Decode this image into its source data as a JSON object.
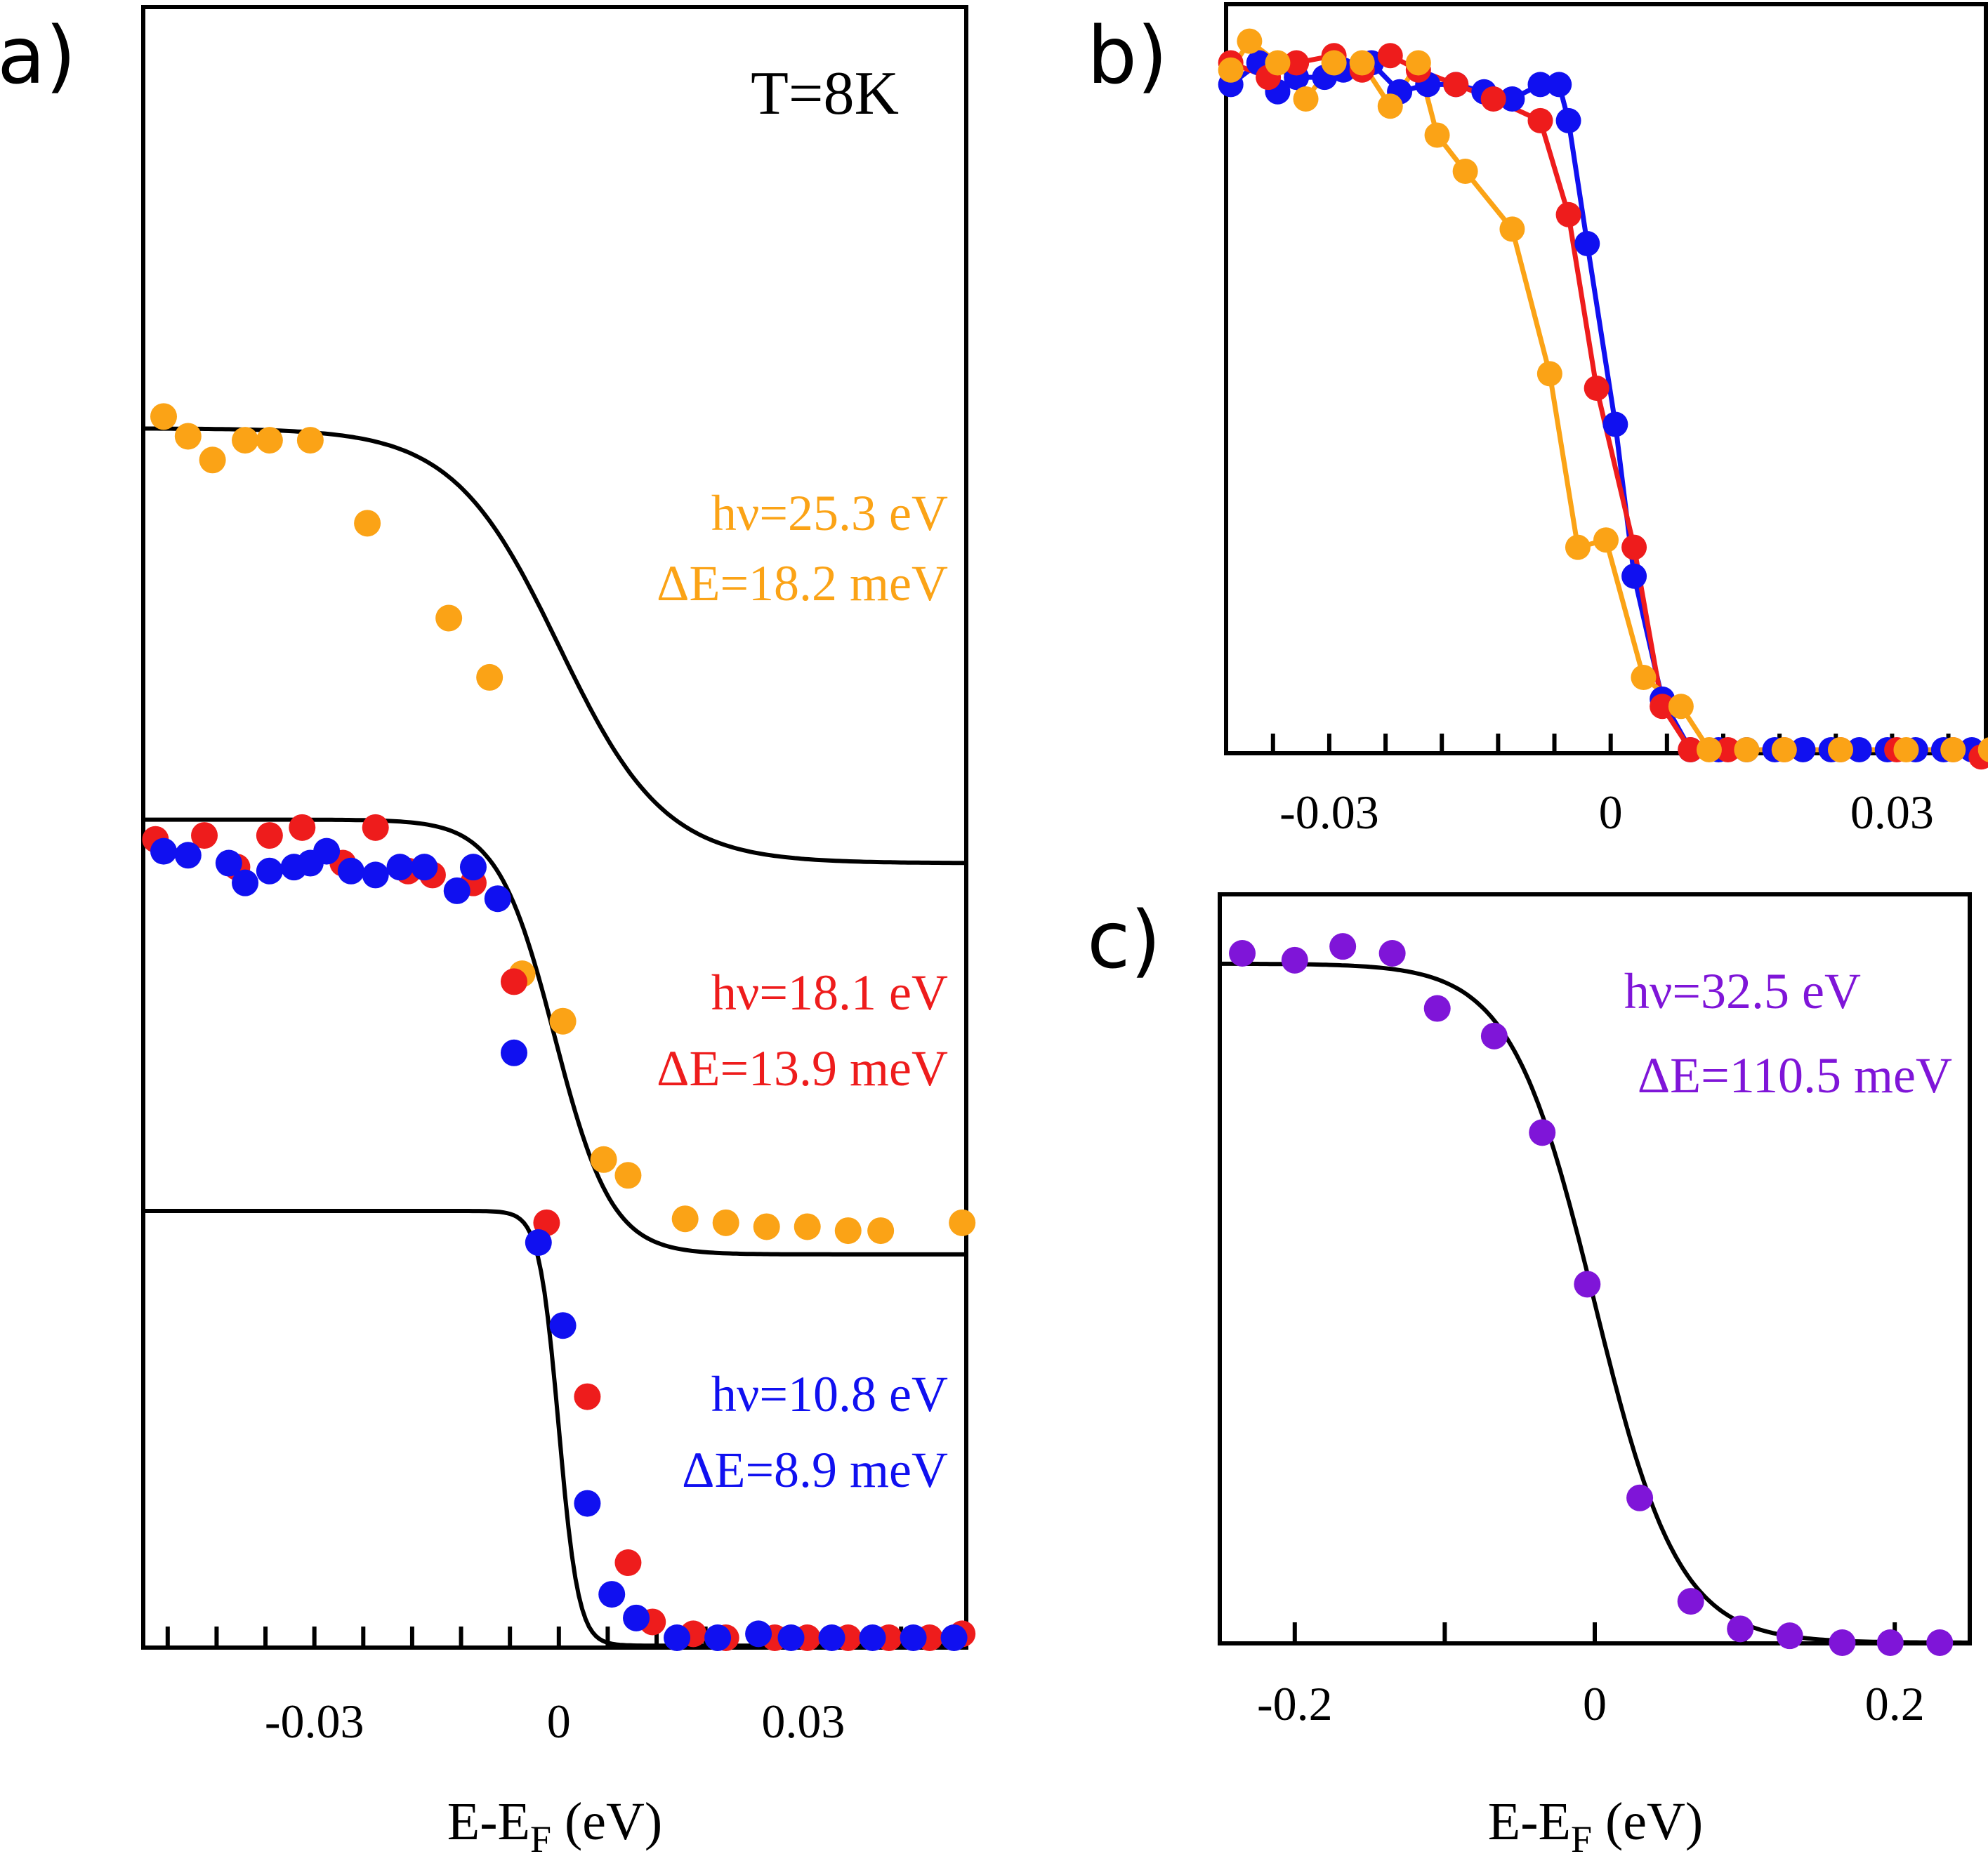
{
  "chart_data": [
    {
      "panel": "a)",
      "type": "scatter",
      "annotation": "T=8K",
      "xlabel": "E-E",
      "xlabel_sub": "F",
      "xlabel_unit": " (eV)",
      "x_ticks": [
        "-0.03",
        "0",
        "0.03"
      ],
      "xlim": [
        -0.051,
        0.05
      ],
      "ylim": [
        0,
        4.0
      ],
      "series": [
        {
          "name": "hν=25.3 eV",
          "label_line2": "ΔE=18.2 meV",
          "color": "#FBA316",
          "offset": 2.0,
          "fit_center": 0.0,
          "fit_width": 0.0065,
          "points": [
            [
              -0.0485,
              3.09
            ],
            [
              -0.0455,
              3.04
            ],
            [
              -0.0425,
              2.98
            ],
            [
              -0.0385,
              3.03
            ],
            [
              -0.0355,
              3.03
            ],
            [
              -0.0305,
              3.03
            ],
            [
              -0.0235,
              2.82
            ],
            [
              -0.0135,
              2.58
            ],
            [
              -0.0085,
              2.43
            ],
            [
              -0.0045,
              1.68
            ],
            [
              0.0005,
              1.56
            ],
            [
              0.0055,
              1.21
            ],
            [
              0.0085,
              1.17
            ],
            [
              0.0155,
              1.06
            ],
            [
              0.0205,
              1.05
            ],
            [
              0.0255,
              1.04
            ],
            [
              0.0305,
              1.04
            ],
            [
              0.0355,
              1.03
            ],
            [
              0.0395,
              1.03
            ],
            [
              0.0495,
              1.05
            ]
          ]
        },
        {
          "name": "hν=18.1 eV",
          "label_line2": "ΔE=13.9 meV",
          "color": "#EE1C1C",
          "offset": 1.0,
          "fit_center": -0.0005,
          "fit_width": 0.0035,
          "points": [
            [
              -0.0495,
              2.02
            ],
            [
              -0.0435,
              2.03
            ],
            [
              -0.0395,
              1.95
            ],
            [
              -0.0355,
              2.03
            ],
            [
              -0.0315,
              2.05
            ],
            [
              -0.0265,
              1.96
            ],
            [
              -0.0225,
              2.05
            ],
            [
              -0.0185,
              1.94
            ],
            [
              -0.0155,
              1.93
            ],
            [
              -0.0105,
              1.91
            ],
            [
              -0.0055,
              1.66
            ],
            [
              -0.0015,
              1.05
            ],
            [
              0.0035,
              0.61
            ],
            [
              0.0085,
              0.19
            ],
            [
              0.0115,
              0.04
            ],
            [
              0.0165,
              0.01
            ],
            [
              0.0205,
              0.0
            ],
            [
              0.0265,
              0.0
            ],
            [
              0.0305,
              0.0
            ],
            [
              0.0355,
              0.0
            ],
            [
              0.0405,
              0.0
            ],
            [
              0.0455,
              0.0
            ],
            [
              0.0495,
              0.01
            ]
          ]
        },
        {
          "name": "hν=10.8 eV",
          "label_line2": "ΔE=8.9 meV",
          "color": "#1010F0",
          "offset": 0.0,
          "fit_center": 0.0,
          "fit_width": 0.0012,
          "points": [
            [
              -0.0485,
              1.99
            ],
            [
              -0.0455,
              1.98
            ],
            [
              -0.0405,
              1.96
            ],
            [
              -0.0385,
              1.91
            ],
            [
              -0.0355,
              1.94
            ],
            [
              -0.0325,
              1.95
            ],
            [
              -0.0305,
              1.96
            ],
            [
              -0.0285,
              1.99
            ],
            [
              -0.0255,
              1.94
            ],
            [
              -0.0225,
              1.93
            ],
            [
              -0.0195,
              1.95
            ],
            [
              -0.0165,
              1.95
            ],
            [
              -0.0125,
              1.89
            ],
            [
              -0.0105,
              1.95
            ],
            [
              -0.0075,
              1.87
            ],
            [
              -0.0055,
              1.48
            ],
            [
              -0.0025,
              1.0
            ],
            [
              0.0005,
              0.79
            ],
            [
              0.0035,
              0.34
            ],
            [
              0.0065,
              0.11
            ],
            [
              0.0095,
              0.05
            ],
            [
              0.0145,
              0.0
            ],
            [
              0.0195,
              0.0
            ],
            [
              0.0245,
              0.01
            ],
            [
              0.0285,
              0.0
            ],
            [
              0.0335,
              0.0
            ],
            [
              0.0385,
              0.0
            ],
            [
              0.0435,
              0.0
            ],
            [
              0.0485,
              0.0
            ]
          ]
        }
      ]
    },
    {
      "panel": "b)",
      "type": "line",
      "x_ticks": [
        "-0.03",
        "0",
        "0.03"
      ],
      "xlim": [
        -0.041,
        0.04
      ],
      "ylim": [
        0,
        1.0
      ],
      "series": [
        {
          "color": "#1010F0",
          "points": [
            [
              -0.0405,
              0.92
            ],
            [
              -0.0375,
              0.95
            ],
            [
              -0.0355,
              0.91
            ],
            [
              -0.0335,
              0.93
            ],
            [
              -0.0305,
              0.93
            ],
            [
              -0.0285,
              0.94
            ],
            [
              -0.0255,
              0.95
            ],
            [
              -0.0225,
              0.91
            ],
            [
              -0.0195,
              0.92
            ],
            [
              -0.0165,
              0.92
            ],
            [
              -0.0135,
              0.91
            ],
            [
              -0.0105,
              0.9
            ],
            [
              -0.0075,
              0.92
            ],
            [
              -0.0055,
              0.92
            ],
            [
              -0.0045,
              0.87
            ],
            [
              -0.0025,
              0.7
            ],
            [
              0.0005,
              0.45
            ],
            [
              0.0025,
              0.24
            ],
            [
              0.0055,
              0.07
            ],
            [
              0.0085,
              0.0
            ],
            [
              0.0115,
              0.0
            ],
            [
              0.0145,
              0.0
            ],
            [
              0.0175,
              0.0
            ],
            [
              0.0205,
              0.0
            ],
            [
              0.0235,
              0.0
            ],
            [
              0.0265,
              0.0
            ],
            [
              0.0295,
              0.0
            ],
            [
              0.0325,
              0.0
            ],
            [
              0.0355,
              0.0
            ],
            [
              0.0385,
              0.0
            ]
          ]
        },
        {
          "color": "#EE1C1C",
          "points": [
            [
              -0.0405,
              0.95
            ],
            [
              -0.0365,
              0.93
            ],
            [
              -0.0335,
              0.95
            ],
            [
              -0.0295,
              0.96
            ],
            [
              -0.0265,
              0.94
            ],
            [
              -0.0235,
              0.96
            ],
            [
              -0.0205,
              0.94
            ],
            [
              -0.0165,
              0.92
            ],
            [
              -0.0125,
              0.9
            ],
            [
              -0.0075,
              0.87
            ],
            [
              -0.0045,
              0.74
            ],
            [
              -0.0015,
              0.5
            ],
            [
              0.0025,
              0.28
            ],
            [
              0.0055,
              0.06
            ],
            [
              0.0085,
              0.0
            ],
            [
              0.0125,
              0.0
            ],
            [
              0.0185,
              0.0
            ],
            [
              0.0245,
              0.0
            ],
            [
              0.0305,
              0.0
            ],
            [
              0.0365,
              0.0
            ],
            [
              0.0395,
              -0.01
            ]
          ]
        },
        {
          "color": "#FBA316",
          "points": [
            [
              -0.0405,
              0.94
            ],
            [
              -0.0385,
              0.98
            ],
            [
              -0.0355,
              0.95
            ],
            [
              -0.0325,
              0.9
            ],
            [
              -0.0295,
              0.95
            ],
            [
              -0.0265,
              0.95
            ],
            [
              -0.0235,
              0.89
            ],
            [
              -0.0205,
              0.95
            ],
            [
              -0.0185,
              0.85
            ],
            [
              -0.0155,
              0.8
            ],
            [
              -0.0105,
              0.72
            ],
            [
              -0.0065,
              0.52
            ],
            [
              -0.0035,
              0.28
            ],
            [
              -0.0005,
              0.29
            ],
            [
              0.0035,
              0.1
            ],
            [
              0.0075,
              0.06
            ],
            [
              0.0105,
              0.0
            ],
            [
              0.0145,
              0.0
            ],
            [
              0.0185,
              0.0
            ],
            [
              0.0245,
              0.0
            ],
            [
              0.0315,
              0.0
            ],
            [
              0.0365,
              0.0
            ],
            [
              0.0405,
              0.0
            ]
          ]
        }
      ]
    },
    {
      "panel": "c)",
      "type": "scatter",
      "xlabel": "E-E",
      "xlabel_sub": "F",
      "xlabel_unit": " (eV)",
      "x_ticks": [
        "-0.2",
        "0",
        "0.2"
      ],
      "xlim": [
        -0.25,
        0.25
      ],
      "ylim": [
        0,
        1.0
      ],
      "series": [
        {
          "name": "hν=32.5 eV",
          "label_line2": "ΔE=110.5 meV",
          "color": "#7F15D8",
          "fit_center": 0.0,
          "fit_width": 0.028,
          "points": [
            [
              -0.235,
              1.0
            ],
            [
              -0.2,
              0.99
            ],
            [
              -0.168,
              1.01
            ],
            [
              -0.135,
              1.0
            ],
            [
              -0.105,
              0.92
            ],
            [
              -0.067,
              0.88
            ],
            [
              -0.035,
              0.74
            ],
            [
              -0.005,
              0.52
            ],
            [
              0.03,
              0.21
            ],
            [
              0.064,
              0.06
            ],
            [
              0.097,
              0.02
            ],
            [
              0.13,
              0.01
            ],
            [
              0.165,
              0.0
            ],
            [
              0.197,
              0.0
            ],
            [
              0.23,
              0.0
            ]
          ]
        }
      ]
    }
  ]
}
